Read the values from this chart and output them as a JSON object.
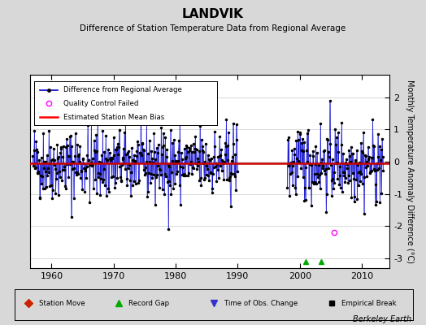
{
  "title": "LANDVIK",
  "subtitle": "Difference of Station Temperature Data from Regional Average",
  "ylabel": "Monthly Temperature Anomaly Difference (°C)",
  "xlabel_ticks": [
    1960,
    1970,
    1980,
    1990,
    2000,
    2010
  ],
  "xlim": [
    1956.5,
    2014.5
  ],
  "ylim": [
    -3.3,
    2.7
  ],
  "yticks": [
    -3,
    -2,
    -1,
    0,
    1,
    2
  ],
  "bias_level": -0.05,
  "background_color": "#d8d8d8",
  "plot_bg_color": "#ffffff",
  "line_color": "#0000cc",
  "bias_color": "#cc0000",
  "seed": 42
}
